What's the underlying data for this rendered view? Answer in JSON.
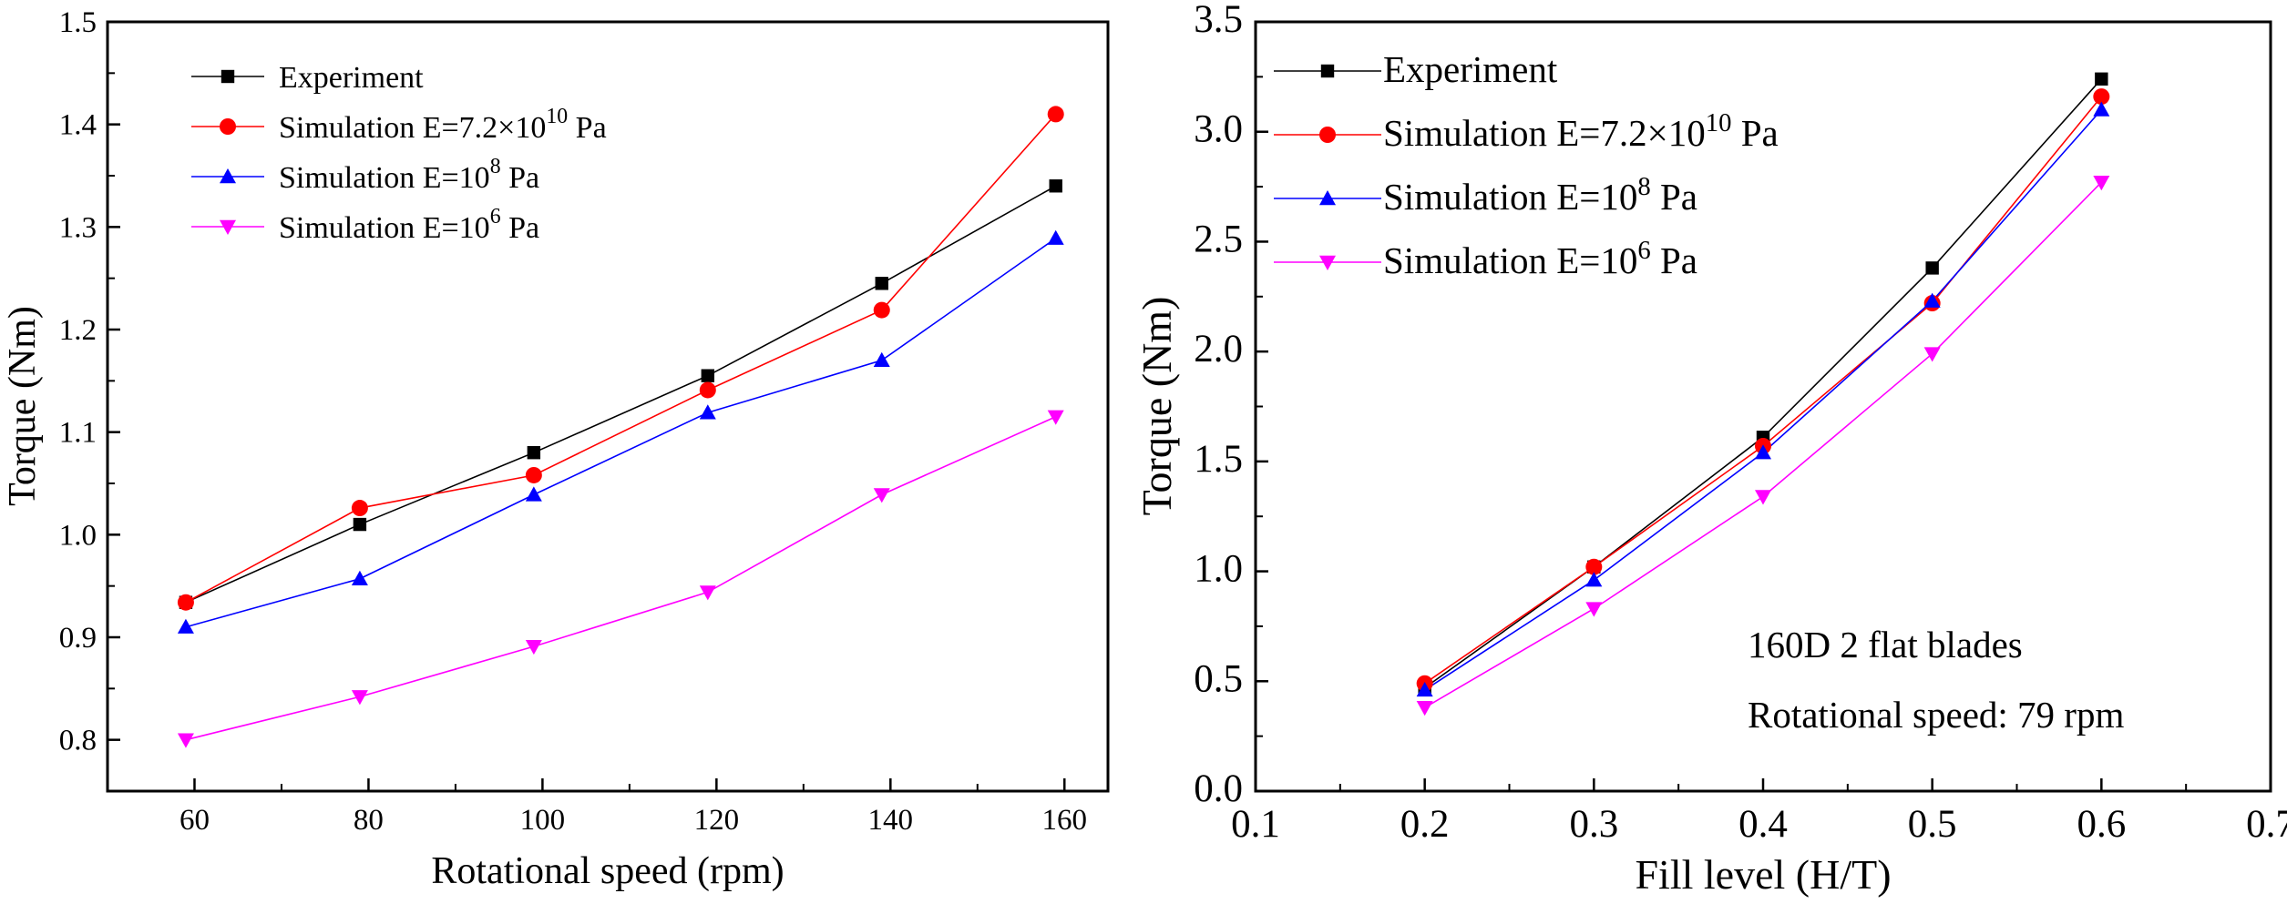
{
  "chart_data": [
    {
      "type": "line",
      "title": "",
      "xlabel": "Rotational speed (rpm)",
      "ylabel": "Torque (Nm)",
      "xlim": [
        50,
        165
      ],
      "ylim": [
        0.75,
        1.5
      ],
      "xticks": [
        "60",
        "80",
        "100",
        "120",
        "140",
        "160"
      ],
      "yticks": [
        "0.8",
        "0.9",
        "1.0",
        "1.1",
        "1.2",
        "1.3",
        "1.4",
        "1.5"
      ],
      "x": [
        59,
        79,
        99,
        119,
        139,
        159
      ],
      "legend_position": "top-left",
      "grid": false,
      "series": [
        {
          "name": "Experiment",
          "label_main": "Experiment",
          "label_exp": "",
          "label_tail": "",
          "marker": "square",
          "color": "#000000",
          "values": [
            0.934,
            1.01,
            1.08,
            1.155,
            1.245,
            1.34
          ]
        },
        {
          "name": "Simulation E=7.2×10^10 Pa",
          "label_main": "Simulation E=7.2×10",
          "label_exp": "10",
          "label_tail": " Pa",
          "marker": "circle",
          "color": "#ff0000",
          "values": [
            0.934,
            1.026,
            1.058,
            1.141,
            1.219,
            1.41
          ]
        },
        {
          "name": "Simulation E=10^8 Pa",
          "label_main": "Simulation E=10",
          "label_exp": "8",
          "label_tail": " Pa",
          "marker": "triangle-up",
          "color": "#0000ff",
          "values": [
            0.91,
            0.957,
            1.039,
            1.119,
            1.17,
            1.289
          ]
        },
        {
          "name": "Simulation E=10^6 Pa",
          "label_main": "Simulation E=10",
          "label_exp": "6",
          "label_tail": " Pa",
          "marker": "triangle-down",
          "color": "#ff00ff",
          "values": [
            0.8,
            0.842,
            0.891,
            0.944,
            1.039,
            1.115
          ]
        }
      ]
    },
    {
      "type": "line",
      "title": "",
      "xlabel": "Fill level (H/T)",
      "ylabel": "Torque (Nm)",
      "xlim": [
        0.1,
        0.7
      ],
      "ylim": [
        0.0,
        3.5
      ],
      "xticks": [
        "0.1",
        "0.2",
        "0.3",
        "0.4",
        "0.5",
        "0.6",
        "0.7"
      ],
      "yticks": [
        "0.0",
        "0.5",
        "1.0",
        "1.5",
        "2.0",
        "2.5",
        "3.0",
        "3.5"
      ],
      "x": [
        0.2,
        0.3,
        0.4,
        0.5,
        0.6
      ],
      "legend_position": "top-left",
      "grid": false,
      "annotations": [
        "160D 2 flat blades",
        "Rotational speed: 79 rpm"
      ],
      "series": [
        {
          "name": "Experiment",
          "label_main": "Experiment",
          "label_exp": "",
          "label_tail": "",
          "marker": "square",
          "color": "#000000",
          "values": [
            0.47,
            1.02,
            1.61,
            2.38,
            3.24
          ]
        },
        {
          "name": "Simulation E=7.2×10^10 Pa",
          "label_main": "Simulation E=7.2×10",
          "label_exp": "10",
          "label_tail": " Pa",
          "marker": "circle",
          "color": "#ff0000",
          "values": [
            0.49,
            1.02,
            1.57,
            2.22,
            3.16
          ]
        },
        {
          "name": "Simulation E=10^8 Pa",
          "label_main": "Simulation E=10",
          "label_exp": "8",
          "label_tail": " Pa",
          "marker": "triangle-up",
          "color": "#0000ff",
          "values": [
            0.46,
            0.96,
            1.54,
            2.23,
            3.1
          ]
        },
        {
          "name": "Simulation E=10^6 Pa",
          "label_main": "Simulation E=10",
          "label_exp": "6",
          "label_tail": " Pa",
          "marker": "triangle-down",
          "color": "#ff00ff",
          "values": [
            0.38,
            0.83,
            1.34,
            1.99,
            2.77
          ]
        }
      ]
    }
  ]
}
